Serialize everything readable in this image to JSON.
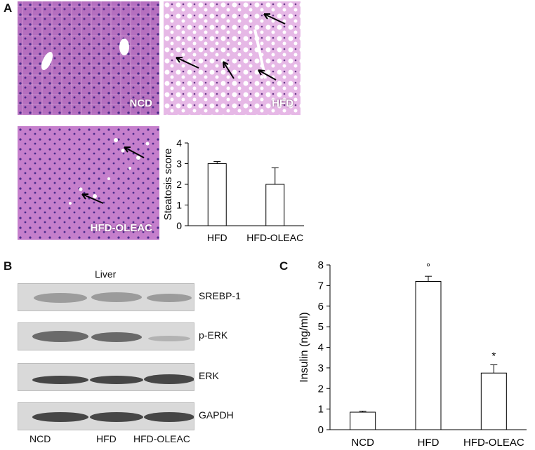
{
  "panel_a": {
    "letter": "A",
    "images": [
      {
        "label": "NCD"
      },
      {
        "label": "HFD"
      },
      {
        "label": "HFD-OLEAC"
      }
    ]
  },
  "panel_b": {
    "letter": "B",
    "tissue_label": "Liver",
    "proteins": [
      "SREBP-1",
      "p-ERK",
      "ERK",
      "GAPDH"
    ],
    "lanes": [
      "NCD",
      "HFD",
      "HFD-OLEAC"
    ]
  },
  "panel_c": {
    "letter": "C"
  },
  "chart_data": [
    {
      "type": "bar",
      "categories": [
        "HFD",
        "HFD-OLEAC"
      ],
      "values": [
        3.0,
        2.0
      ],
      "errors": [
        0.1,
        0.8
      ],
      "ylabel": "Steatosis score",
      "ylim": [
        0,
        4
      ],
      "yticks": [
        "0",
        "1",
        "2",
        "3",
        "4"
      ]
    },
    {
      "type": "bar",
      "categories": [
        "NCD",
        "HFD",
        "HFD-OLEAC"
      ],
      "values": [
        0.85,
        7.2,
        2.75
      ],
      "errors": [
        0.05,
        0.25,
        0.4
      ],
      "annotations": [
        "",
        "°",
        "*"
      ],
      "ylabel": "Insulin (ng/ml)",
      "ylim": [
        0,
        8
      ],
      "yticks": [
        "0",
        "1",
        "2",
        "3",
        "4",
        "5",
        "6",
        "7",
        "8"
      ]
    }
  ]
}
